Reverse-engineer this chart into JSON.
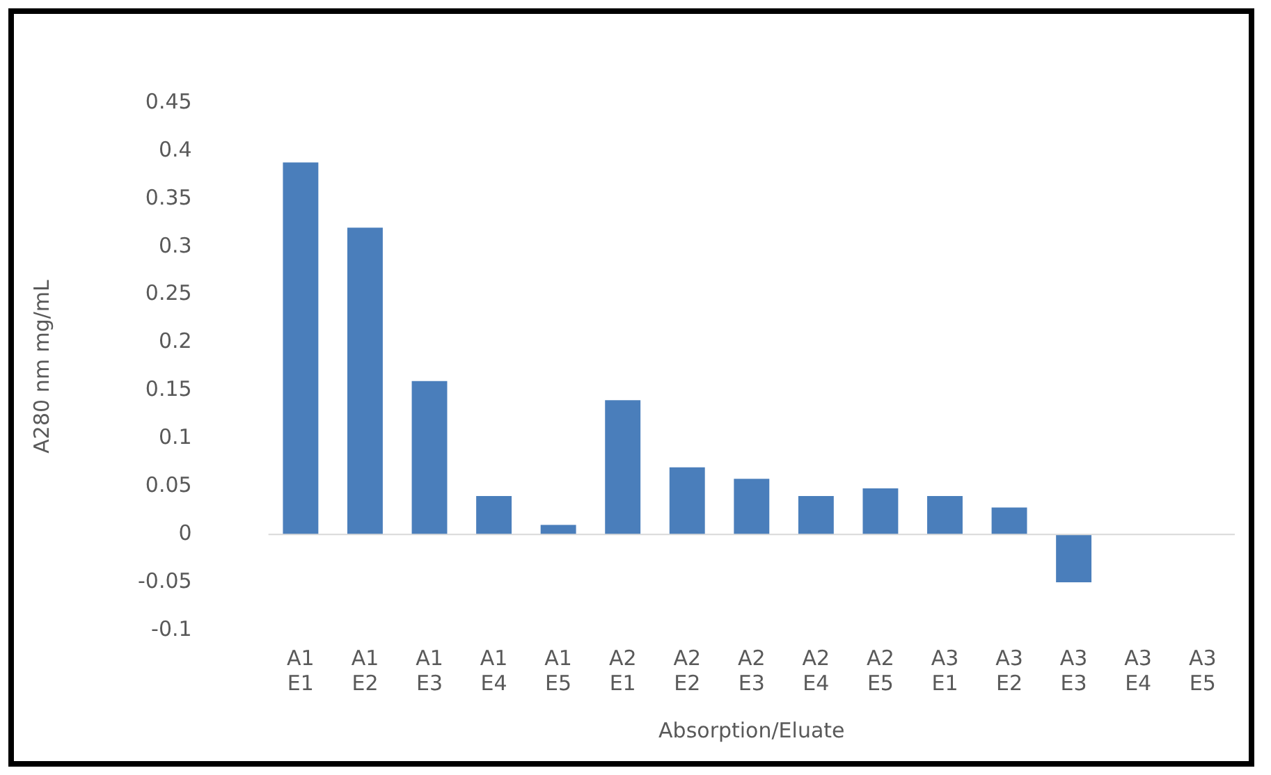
{
  "chart_data": {
    "type": "bar",
    "xlabel": "Absorption/Eluate",
    "ylabel": "A280 nm mg/mL",
    "categories": [
      "A1 E1",
      "A1 E2",
      "A1 E3",
      "A1 E4",
      "A1 E5",
      "A2 E1",
      "A2 E2",
      "A2 E3",
      "A2 E4",
      "A2 E5",
      "A3 E1",
      "A3 E2",
      "A3 E3",
      "A3 E4",
      "A3 E5"
    ],
    "values": [
      0.388,
      0.32,
      0.16,
      0.04,
      0.01,
      0.14,
      0.07,
      0.058,
      0.04,
      0.048,
      0.04,
      0.028,
      -0.05,
      0,
      0
    ],
    "color": "#4a7ebb",
    "ylim": [
      -0.1,
      0.45
    ],
    "yticks": [
      -0.1,
      -0.05,
      0,
      0.05,
      0.1,
      0.15,
      0.2,
      0.25,
      0.3,
      0.35,
      0.4,
      0.45
    ],
    "ref_lines": [
      {
        "axis": "y",
        "value": 0,
        "color": "#d9d9d9"
      }
    ],
    "grid": false,
    "legend": false
  }
}
